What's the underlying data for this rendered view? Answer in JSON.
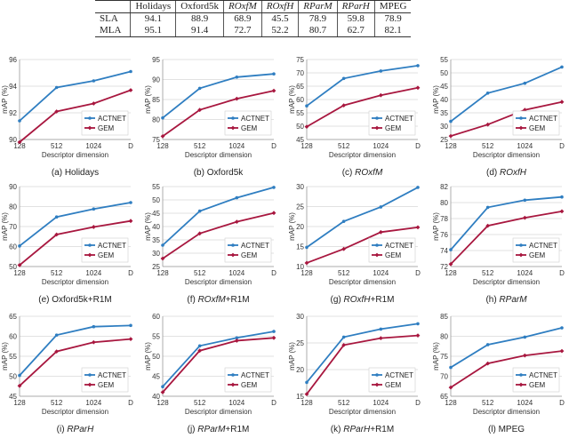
{
  "table": {
    "header": [
      "",
      "Holidays",
      "Oxford5k",
      "ROxfM",
      "ROxfH",
      "RParM",
      "RParH",
      "MPEG"
    ],
    "rows": [
      {
        "method": "SLA",
        "values": [
          "94.1",
          "88.9",
          "68.9",
          "45.5",
          "78.9",
          "59.8",
          "78.9"
        ]
      },
      {
        "method": "MLA",
        "values": [
          "95.1",
          "91.4",
          "72.7",
          "52.2",
          "80.7",
          "62.7",
          "82.1"
        ]
      }
    ]
  },
  "colors": {
    "actnet": "#2f7ec1",
    "gem": "#a8173f"
  },
  "chart_data": [
    {
      "type": "line",
      "caption": "(a) Holidays",
      "xlabel": "Descriptor dimension",
      "ylabel": "mAP (%)",
      "categories": [
        "128",
        "512",
        "1024",
        "D"
      ],
      "ylim": [
        90,
        96
      ],
      "yticks": [
        90,
        92,
        94,
        96
      ],
      "series": [
        {
          "name": "ACTNET",
          "values": [
            91.4,
            93.9,
            94.4,
            95.1
          ]
        },
        {
          "name": "GEM",
          "values": [
            89.8,
            92.1,
            92.7,
            93.7
          ]
        }
      ]
    },
    {
      "type": "line",
      "caption": "(b) Oxford5k",
      "xlabel": "Descriptor dimension",
      "ylabel": "mAP (%)",
      "categories": [
        "128",
        "512",
        "1024",
        "D"
      ],
      "ylim": [
        75,
        95
      ],
      "yticks": [
        75,
        80,
        85,
        90,
        95
      ],
      "series": [
        {
          "name": "ACTNET",
          "values": [
            80.4,
            87.8,
            90.6,
            91.4
          ]
        },
        {
          "name": "GEM",
          "values": [
            75.8,
            82.4,
            85.2,
            87.2
          ]
        }
      ]
    },
    {
      "type": "line",
      "caption": "(c) ROxfM",
      "xlabel": "Descriptor dimension",
      "ylabel": "mAP (%)",
      "categories": [
        "128",
        "512",
        "1024",
        "D"
      ],
      "ylim": [
        45,
        75
      ],
      "yticks": [
        45,
        50,
        55,
        60,
        65,
        70,
        75
      ],
      "series": [
        {
          "name": "ACTNET",
          "values": [
            57.6,
            67.9,
            70.7,
            72.7
          ]
        },
        {
          "name": "GEM",
          "values": [
            49.8,
            57.8,
            61.6,
            64.4
          ]
        }
      ]
    },
    {
      "type": "line",
      "caption": "(d) ROxfH",
      "xlabel": "Descriptor dimension",
      "ylabel": "mAP (%)",
      "categories": [
        "128",
        "512",
        "1024",
        "D"
      ],
      "ylim": [
        25,
        55
      ],
      "yticks": [
        25,
        30,
        35,
        40,
        45,
        50,
        55
      ],
      "series": [
        {
          "name": "ACTNET",
          "values": [
            31.8,
            42.4,
            46.1,
            52.2
          ]
        },
        {
          "name": "GEM",
          "values": [
            26.3,
            30.6,
            36.1,
            39.1
          ]
        }
      ]
    },
    {
      "type": "line",
      "caption": "(e) Oxford5k+R1M",
      "xlabel": "Descriptor dimension",
      "ylabel": "mAP (%)",
      "categories": [
        "128",
        "512",
        "1024",
        "D"
      ],
      "ylim": [
        50,
        90
      ],
      "yticks": [
        50,
        60,
        70,
        80,
        90
      ],
      "series": [
        {
          "name": "ACTNET",
          "values": [
            60.3,
            74.8,
            78.8,
            82.0
          ]
        },
        {
          "name": "GEM",
          "values": [
            50.7,
            66.0,
            69.8,
            72.8
          ]
        }
      ]
    },
    {
      "type": "line",
      "caption": "(f) ROxfM+R1M",
      "xlabel": "Descriptor dimension",
      "ylabel": "mAP (%)",
      "categories": [
        "128",
        "512",
        "1024",
        "D"
      ],
      "ylim": [
        25,
        55
      ],
      "yticks": [
        25,
        30,
        35,
        40,
        45,
        50,
        55
      ],
      "series": [
        {
          "name": "ACTNET",
          "values": [
            33.0,
            45.8,
            50.8,
            54.7
          ]
        },
        {
          "name": "GEM",
          "values": [
            28.0,
            37.4,
            41.8,
            45.1
          ]
        }
      ]
    },
    {
      "type": "line",
      "caption": "(g) ROxfH+R1M",
      "xlabel": "Descriptor dimension",
      "ylabel": "mAP (%)",
      "categories": [
        "128",
        "512",
        "1024",
        "D"
      ],
      "ylim": [
        10,
        30
      ],
      "yticks": [
        10,
        15,
        20,
        25,
        30
      ],
      "series": [
        {
          "name": "ACTNET",
          "values": [
            14.8,
            21.3,
            24.9,
            29.8
          ]
        },
        {
          "name": "GEM",
          "values": [
            10.9,
            14.4,
            18.6,
            19.8
          ]
        }
      ]
    },
    {
      "type": "line",
      "caption": "(h) RParM",
      "xlabel": "Descriptor dimension",
      "ylabel": "mAP (%)",
      "categories": [
        "128",
        "512",
        "1024",
        "D"
      ],
      "ylim": [
        72,
        82
      ],
      "yticks": [
        72,
        74,
        76,
        78,
        80,
        82
      ],
      "series": [
        {
          "name": "ACTNET",
          "values": [
            74.1,
            79.4,
            80.3,
            80.7
          ]
        },
        {
          "name": "GEM",
          "values": [
            72.3,
            77.1,
            78.1,
            78.9
          ]
        }
      ]
    },
    {
      "type": "line",
      "caption": "(i) RParH",
      "xlabel": "Descriptor dimension",
      "ylabel": "mAP (%)",
      "categories": [
        "128",
        "512",
        "1024",
        "D"
      ],
      "ylim": [
        45,
        65
      ],
      "yticks": [
        45,
        50,
        55,
        60,
        65
      ],
      "series": [
        {
          "name": "ACTNET",
          "values": [
            50.2,
            60.3,
            62.4,
            62.7
          ]
        },
        {
          "name": "GEM",
          "values": [
            47.6,
            56.2,
            58.5,
            59.3
          ]
        }
      ]
    },
    {
      "type": "line",
      "caption": "(j) RParM+R1M",
      "xlabel": "Descriptor dimension",
      "ylabel": "mAP (%)",
      "categories": [
        "128",
        "512",
        "1024",
        "D"
      ],
      "ylim": [
        40,
        60
      ],
      "yticks": [
        40,
        45,
        50,
        55,
        60
      ],
      "series": [
        {
          "name": "ACTNET",
          "values": [
            42.4,
            52.6,
            54.6,
            56.2
          ]
        },
        {
          "name": "GEM",
          "values": [
            41.0,
            51.4,
            53.9,
            54.6
          ]
        }
      ]
    },
    {
      "type": "line",
      "caption": "(k) RParH+R1M",
      "xlabel": "Descriptor dimension",
      "ylabel": "mAP (%)",
      "categories": [
        "128",
        "512",
        "1024",
        "D"
      ],
      "ylim": [
        15,
        30
      ],
      "yticks": [
        15,
        20,
        25,
        30
      ],
      "series": [
        {
          "name": "ACTNET",
          "values": [
            17.6,
            26.1,
            27.6,
            28.6
          ]
        },
        {
          "name": "GEM",
          "values": [
            15.4,
            24.6,
            25.9,
            26.4
          ]
        }
      ]
    },
    {
      "type": "line",
      "caption": "(l) MPEG",
      "xlabel": "Descriptor dimension",
      "ylabel": "mAP (%)",
      "categories": [
        "128",
        "512",
        "1024",
        "D"
      ],
      "ylim": [
        65,
        85
      ],
      "yticks": [
        65,
        70,
        75,
        80,
        85
      ],
      "series": [
        {
          "name": "ACTNET",
          "values": [
            72.2,
            77.9,
            79.8,
            82.1
          ]
        },
        {
          "name": "GEM",
          "values": [
            67.2,
            73.2,
            75.2,
            76.3
          ]
        }
      ]
    }
  ]
}
